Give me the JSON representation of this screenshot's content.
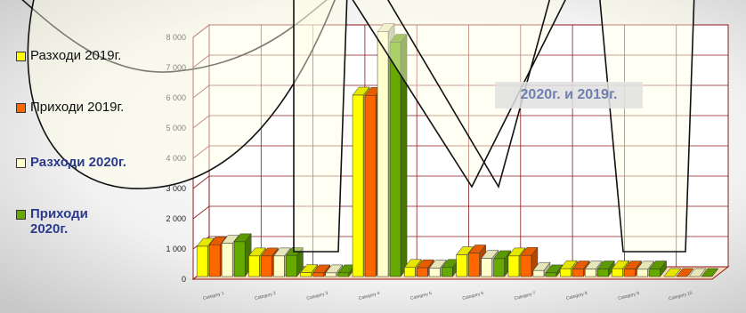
{
  "chart_data": {
    "type": "bar",
    "categories": [
      "Category 1",
      "Category 2",
      "Category 3",
      "Category 4",
      "Category 5",
      "Category 6",
      "Category 7",
      "Category 8",
      "Category 9",
      "Category 10"
    ],
    "ylim": [
      0,
      8000
    ],
    "yticks": [
      "0",
      "1 000",
      "2 000",
      "3 000",
      "4 000",
      "5 000",
      "6 000",
      "7 000",
      "8 000"
    ],
    "grid": true,
    "legend_position": "left",
    "series": [
      {
        "name": "Разходи 2019г.",
        "color": "#ffff00",
        "values": [
          1000,
          680,
          130,
          6000,
          300,
          720,
          680,
          260,
          260,
          0
        ]
      },
      {
        "name": "Приходи 2019г.",
        "color": "#ff6600",
        "values": [
          1050,
          680,
          120,
          5990,
          290,
          780,
          700,
          250,
          250,
          0
        ]
      },
      {
        "name": "Разходи 2020г.",
        "color": "#ffffcc",
        "values": [
          1100,
          680,
          120,
          8100,
          280,
          600,
          200,
          250,
          240,
          0
        ]
      },
      {
        "name": "Приходи 2020г.",
        "color": "#66aa00",
        "values": [
          1150,
          700,
          120,
          7750,
          300,
          590,
          120,
          250,
          250,
          0
        ]
      }
    ],
    "annotation": "2020г. и 2019г."
  },
  "legend": [
    {
      "label": "Разходи 2019г.",
      "color": "#ffff00",
      "bold": false
    },
    {
      "label": "Приходи 2019г.",
      "color": "#ff6600",
      "bold": false
    },
    {
      "label": "Разходи 2020г.",
      "color": "#ffffcc",
      "bold": true
    },
    {
      "label": "Приходи 2020г.",
      "color": "#66aa00",
      "bold": true
    }
  ]
}
